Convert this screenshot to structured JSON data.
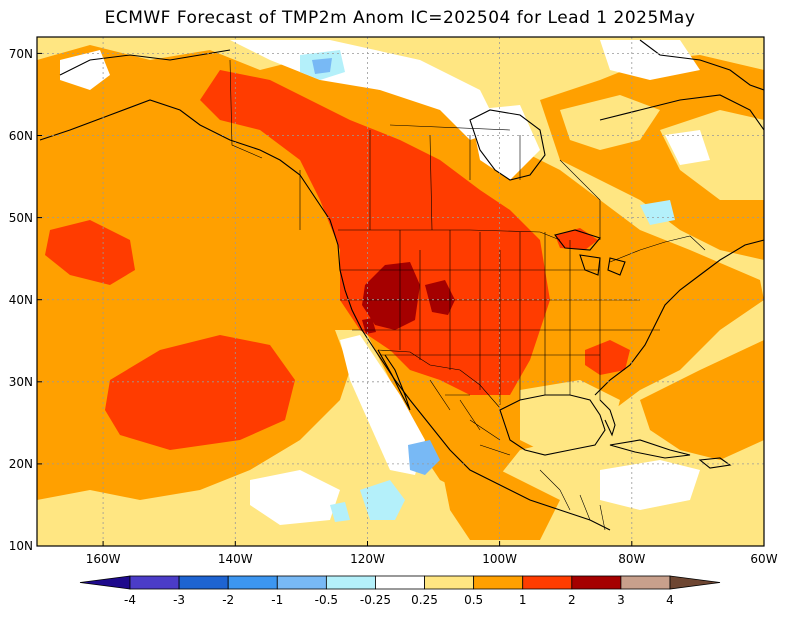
{
  "title": "ECMWF Forecast of TMP2m Anom IC=202504 for Lead 1 2025May",
  "map": {
    "projection": "equirectangular",
    "lon_range": [
      -170,
      -60
    ],
    "lat_range": [
      10,
      72
    ],
    "lat_labels": [
      "10N",
      "20N",
      "30N",
      "40N",
      "50N",
      "60N",
      "70N"
    ],
    "lat_values": [
      10,
      20,
      30,
      40,
      50,
      60,
      70
    ],
    "lon_labels": [
      "160W",
      "140W",
      "120W",
      "100W",
      "80W",
      "60W"
    ],
    "lon_values": [
      -160,
      -140,
      -120,
      -100,
      -80,
      -60
    ],
    "grid_lines": "dotted"
  },
  "colorbar": {
    "levels": [
      "-4",
      "-3",
      "-2",
      "-1",
      "-0.5",
      "-0.25",
      "0.25",
      "0.5",
      "1",
      "2",
      "3",
      "4"
    ],
    "colors": [
      "#1e0a8c",
      "#4b3cc8",
      "#1e64d2",
      "#3c96f0",
      "#78b9f5",
      "#b4f0fa",
      "#ffffff",
      "#ffe682",
      "#ffa000",
      "#ff3c00",
      "#a50000",
      "#c8a08c",
      "#6e4632"
    ]
  }
}
